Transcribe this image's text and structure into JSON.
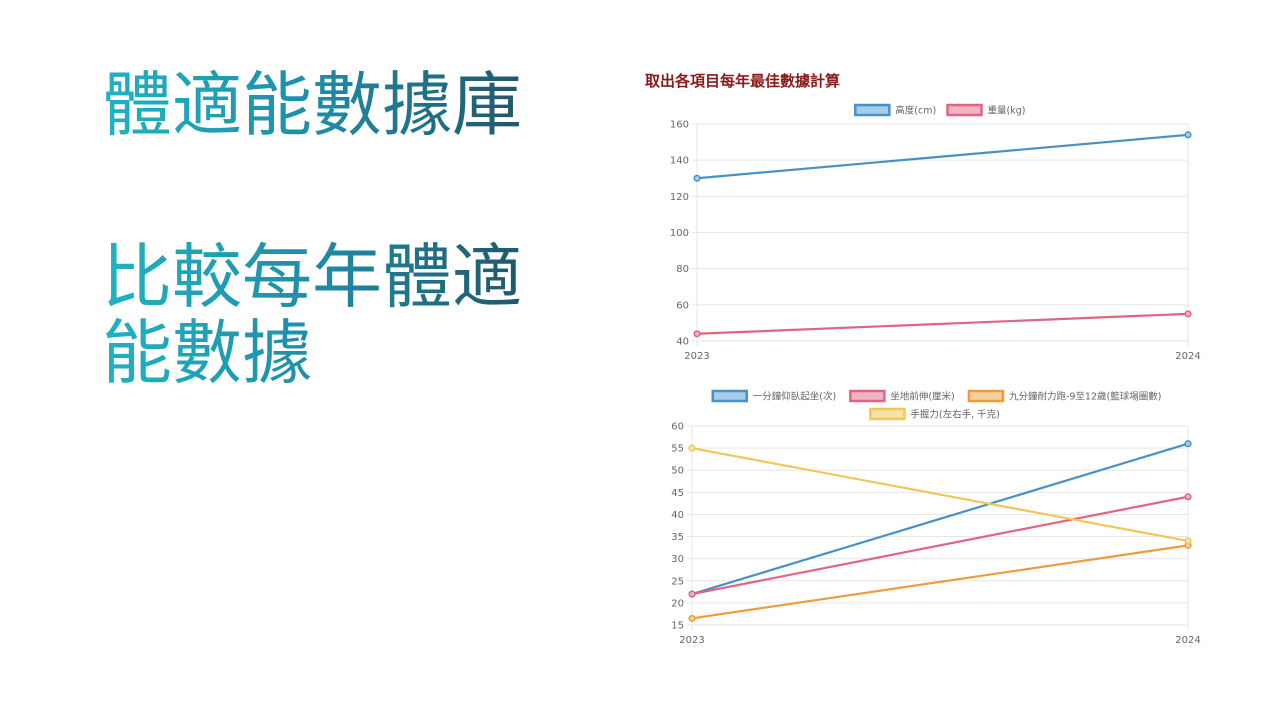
{
  "slide": {
    "title1": "體適能數據庫",
    "title2": "比較每年體適能數據"
  },
  "panel": {
    "heading": "取出各項目每年最佳數據計算"
  },
  "chart_data": [
    {
      "type": "line",
      "x": [
        "2023",
        "2024"
      ],
      "ylim": [
        40,
        160
      ],
      "yticks": [
        40,
        60,
        80,
        100,
        120,
        140,
        160
      ],
      "grid": true,
      "legend_position": "top",
      "series": [
        {
          "name": "高度(cm)",
          "values": [
            130,
            154
          ],
          "color": "#4a90c8",
          "fill": "#a6cdea"
        },
        {
          "name": "重量(kg)",
          "values": [
            44,
            55
          ],
          "color": "#e06584",
          "fill": "#f4b3c3"
        }
      ]
    },
    {
      "type": "line",
      "x": [
        "2023",
        "2024"
      ],
      "ylim": [
        15,
        60
      ],
      "yticks": [
        15,
        20,
        25,
        30,
        35,
        40,
        45,
        50,
        55,
        60
      ],
      "grid": true,
      "legend_position": "top",
      "series": [
        {
          "name": "一分鐘仰臥起坐(次)",
          "values": [
            22,
            56
          ],
          "color": "#4a90c8",
          "fill": "#a6cdea"
        },
        {
          "name": "坐地前伸(厘米)",
          "values": [
            22,
            44
          ],
          "color": "#e06584",
          "fill": "#f4b3c3"
        },
        {
          "name": "九分鐘耐力跑-9至12歲(籃球場圈數)",
          "values": [
            16.5,
            33
          ],
          "color": "#ef9b3d",
          "fill": "#f8cf9e"
        },
        {
          "name": "手握力(左右手, 千克)",
          "values": [
            55,
            34
          ],
          "color": "#f1c75b",
          "fill": "#f8e2a8"
        }
      ]
    }
  ]
}
